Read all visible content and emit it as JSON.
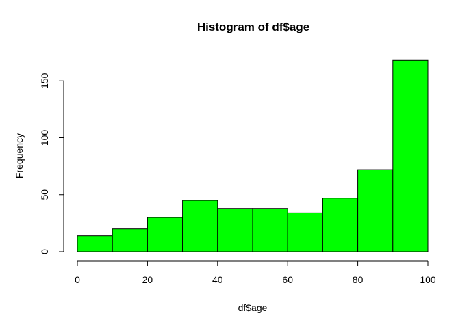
{
  "chart_data": {
    "type": "bar",
    "title": "Histogram of df$age",
    "xlabel": "df$age",
    "ylabel": "Frequency",
    "bins": [
      {
        "from": 0,
        "to": 10,
        "count": 14
      },
      {
        "from": 10,
        "to": 20,
        "count": 20
      },
      {
        "from": 20,
        "to": 30,
        "count": 30
      },
      {
        "from": 30,
        "to": 40,
        "count": 45
      },
      {
        "from": 40,
        "to": 50,
        "count": 38
      },
      {
        "from": 50,
        "to": 60,
        "count": 38
      },
      {
        "from": 60,
        "to": 70,
        "count": 34
      },
      {
        "from": 70,
        "to": 80,
        "count": 47
      },
      {
        "from": 80,
        "to": 90,
        "count": 72
      },
      {
        "from": 90,
        "to": 100,
        "count": 168
      }
    ],
    "xlim": [
      0,
      100
    ],
    "ylim": [
      0,
      168
    ],
    "xticks": [
      0,
      20,
      40,
      60,
      80,
      100
    ],
    "yticks": [
      0,
      50,
      100,
      150
    ],
    "bar_color": "#00ff00",
    "grid": false
  }
}
